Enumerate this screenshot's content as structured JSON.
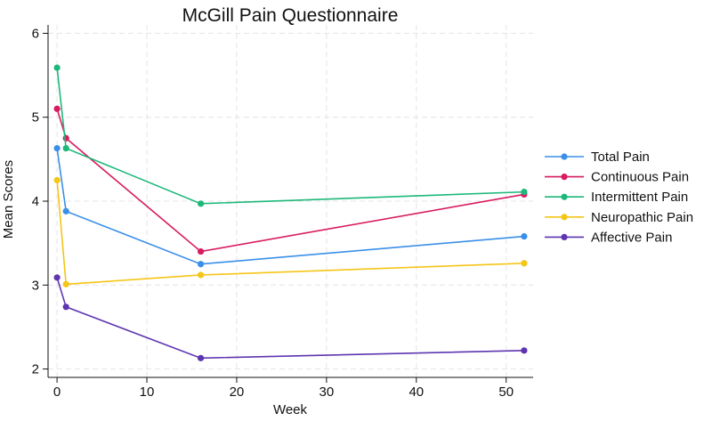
{
  "chart_data": {
    "type": "line",
    "title": "McGill Pain Questionnaire",
    "xlabel": "Week",
    "ylabel": "Mean Scores",
    "xlim": [
      -1,
      53
    ],
    "ylim": [
      1.9,
      6.1
    ],
    "xticks": [
      0,
      10,
      20,
      30,
      40,
      50
    ],
    "yticks": [
      2,
      3,
      4,
      5,
      6
    ],
    "grid": true,
    "legend_position": "right",
    "x": [
      0,
      1,
      16,
      52
    ],
    "series": [
      {
        "name": "Total Pain",
        "color": "#3a8fe8",
        "values": [
          4.63,
          3.88,
          3.25,
          3.58
        ]
      },
      {
        "name": "Continuous Pain",
        "color": "#d81b60",
        "values": [
          5.1,
          4.75,
          3.4,
          4.08
        ]
      },
      {
        "name": "Intermittent Pain",
        "color": "#1db87a",
        "values": [
          5.59,
          4.63,
          3.97,
          4.11
        ]
      },
      {
        "name": "Neuropathic Pain",
        "color": "#f5c518",
        "values": [
          4.25,
          3.01,
          3.12,
          3.26
        ]
      },
      {
        "name": "Affective Pain",
        "color": "#5e35b1",
        "values": [
          3.09,
          2.74,
          2.13,
          2.22
        ]
      }
    ]
  }
}
